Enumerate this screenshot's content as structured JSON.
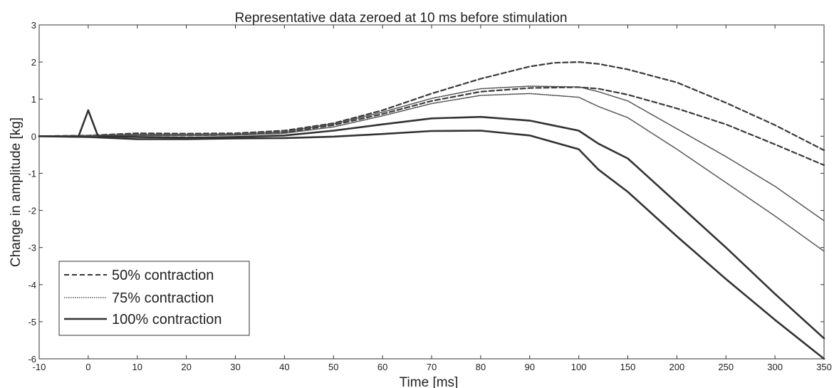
{
  "chart_data": {
    "type": "line",
    "title": "Representative data zeroed at 10 ms before stimulation",
    "xlabel": "Time [ms]",
    "ylabel": "Change in amplitude [kg]",
    "ylim": [
      -6,
      3
    ],
    "x_ticks": [
      "-10",
      "0",
      "10",
      "20",
      "30",
      "40",
      "50",
      "60",
      "70",
      "80",
      "90",
      "100",
      "150",
      "200",
      "250",
      "300",
      "350"
    ],
    "y_ticks": [
      "3",
      "2",
      "1",
      "0",
      "-1",
      "-2",
      "-3",
      "-4",
      "-5",
      "-6"
    ],
    "grid": false,
    "legend_position": "bottom-left",
    "legend": [
      {
        "label": "50% contraction",
        "style": "dashed"
      },
      {
        "label": "75% contraction",
        "style": "dotted"
      },
      {
        "label": "100% contraction",
        "style": "solid"
      }
    ],
    "series": [
      {
        "name": "50% contraction",
        "style": "dashed",
        "x": [
          -10,
          0,
          10,
          20,
          30,
          40,
          50,
          60,
          70,
          80,
          90,
          95,
          100,
          120,
          150,
          200,
          250,
          300,
          350
        ],
        "y": [
          0,
          0.02,
          0.08,
          0.07,
          0.08,
          0.15,
          0.35,
          0.7,
          1.15,
          1.55,
          1.88,
          1.98,
          2.0,
          1.95,
          1.8,
          1.45,
          0.9,
          0.3,
          -0.38
        ]
      },
      {
        "name": "50% contraction",
        "style": "dashed",
        "x": [
          -10,
          0,
          10,
          20,
          30,
          40,
          50,
          60,
          70,
          80,
          90,
          100,
          120,
          150,
          200,
          250,
          300,
          350
        ],
        "y": [
          0,
          0.01,
          0.03,
          0.02,
          0.04,
          0.1,
          0.3,
          0.6,
          0.95,
          1.2,
          1.3,
          1.32,
          1.28,
          1.12,
          0.75,
          0.32,
          -0.22,
          -0.78
        ]
      },
      {
        "name": "75% contraction",
        "style": "dotted",
        "x": [
          -10,
          0,
          10,
          20,
          30,
          40,
          50,
          60,
          70,
          80,
          90,
          100,
          120,
          150,
          200,
          250,
          300,
          350
        ],
        "y": [
          0,
          0.02,
          0.05,
          0.05,
          0.06,
          0.12,
          0.33,
          0.65,
          1.02,
          1.28,
          1.35,
          1.33,
          1.2,
          0.95,
          0.2,
          -0.55,
          -1.35,
          -2.28
        ]
      },
      {
        "name": "75% contraction",
        "style": "dotted",
        "x": [
          -10,
          0,
          10,
          20,
          30,
          40,
          50,
          60,
          70,
          80,
          90,
          100,
          120,
          150,
          200,
          250,
          300,
          350
        ],
        "y": [
          0,
          0.01,
          0.02,
          0.02,
          0.03,
          0.08,
          0.25,
          0.55,
          0.88,
          1.1,
          1.15,
          1.05,
          0.8,
          0.5,
          -0.35,
          -1.25,
          -2.15,
          -3.1
        ]
      },
      {
        "name": "100% contraction",
        "style": "solid",
        "x": [
          -10,
          -2,
          0,
          2,
          10,
          20,
          30,
          40,
          50,
          60,
          70,
          80,
          90,
          100,
          120,
          150,
          200,
          250,
          300,
          350
        ],
        "y": [
          0,
          -0.01,
          0.7,
          0.0,
          -0.02,
          -0.04,
          -0.02,
          0.02,
          0.15,
          0.32,
          0.48,
          0.52,
          0.42,
          0.15,
          -0.2,
          -0.6,
          -1.8,
          -3.0,
          -4.25,
          -5.45
        ]
      },
      {
        "name": "100% contraction",
        "style": "solid",
        "x": [
          -10,
          0,
          10,
          20,
          30,
          40,
          50,
          60,
          70,
          80,
          90,
          100,
          120,
          150,
          200,
          250,
          300,
          350
        ],
        "y": [
          0,
          -0.02,
          -0.08,
          -0.08,
          -0.06,
          -0.05,
          -0.01,
          0.06,
          0.14,
          0.15,
          0.02,
          -0.35,
          -0.9,
          -1.5,
          -2.7,
          -3.85,
          -4.95,
          -6.0
        ]
      }
    ]
  }
}
